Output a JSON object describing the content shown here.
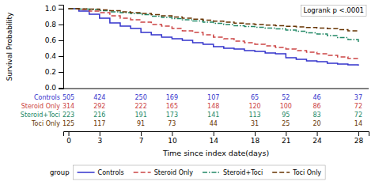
{
  "chart_data": {
    "type": "step",
    "title": "Logrank p <.0001",
    "ylabel": "Survival Probability",
    "xlabel": "Time since index date(days)",
    "legend_title": "group",
    "legend": "bottom",
    "grid": false,
    "x": [
      0,
      1,
      2,
      3,
      4,
      5,
      6,
      7,
      8,
      9,
      10,
      11,
      12,
      13,
      14,
      15,
      16,
      17,
      18,
      19,
      20,
      21,
      22,
      23,
      24,
      25,
      26,
      27,
      28
    ],
    "xlim": [
      -0.5,
      29
    ],
    "xticks": [
      0,
      3,
      7,
      10,
      14,
      18,
      21,
      24,
      28
    ],
    "ylim": [
      -0.01,
      1.05
    ],
    "yticks": [
      {
        "value": 0,
        "label": "0.0"
      },
      0.2,
      0.4,
      0.6,
      0.8,
      {
        "value": 1,
        "label": "1.0"
      }
    ],
    "series": [
      {
        "name": "Controls",
        "color": "#3333cc",
        "line_style": "solid",
        "values": [
          1.0,
          0.97,
          0.93,
          0.88,
          0.82,
          0.78,
          0.75,
          0.7,
          0.67,
          0.64,
          0.62,
          0.6,
          0.57,
          0.55,
          0.52,
          0.5,
          0.49,
          0.47,
          0.46,
          0.44,
          0.43,
          0.38,
          0.36,
          0.34,
          0.33,
          0.31,
          0.3,
          0.29,
          0.28
        ],
        "at_risk": [
          505,
          424,
          250,
          169,
          107,
          65,
          52,
          46,
          37
        ]
      },
      {
        "name": "Steroid Only",
        "color": "#cc4444",
        "line_style": "dashed",
        "values": [
          1.0,
          0.99,
          0.97,
          0.95,
          0.91,
          0.88,
          0.86,
          0.83,
          0.8,
          0.78,
          0.75,
          0.72,
          0.7,
          0.67,
          0.64,
          0.62,
          0.59,
          0.57,
          0.55,
          0.53,
          0.51,
          0.49,
          0.47,
          0.45,
          0.43,
          0.41,
          0.39,
          0.37,
          0.36
        ],
        "at_risk": [
          314,
          292,
          222,
          165,
          148,
          120,
          100,
          86,
          72
        ]
      },
      {
        "name": "Steroid+Toci",
        "color": "#228866",
        "line_style": "dashdot",
        "values": [
          1.0,
          0.995,
          0.99,
          0.975,
          0.96,
          0.95,
          0.94,
          0.925,
          0.905,
          0.89,
          0.875,
          0.86,
          0.845,
          0.83,
          0.815,
          0.8,
          0.785,
          0.775,
          0.765,
          0.755,
          0.745,
          0.73,
          0.715,
          0.695,
          0.68,
          0.66,
          0.635,
          0.61,
          0.58
        ],
        "at_risk": [
          223,
          216,
          191,
          173,
          141,
          113,
          95,
          83,
          72
        ]
      },
      {
        "name": "Toci Only",
        "color": "#663300",
        "line_style": "dashed",
        "values": [
          1.0,
          0.998,
          0.995,
          0.985,
          0.975,
          0.96,
          0.95,
          0.94,
          0.925,
          0.91,
          0.895,
          0.88,
          0.868,
          0.855,
          0.842,
          0.83,
          0.818,
          0.808,
          0.8,
          0.793,
          0.786,
          0.778,
          0.77,
          0.762,
          0.755,
          0.748,
          0.735,
          0.72,
          0.705
        ],
        "at_risk": [
          125,
          117,
          91,
          73,
          44,
          31,
          25,
          20,
          14
        ]
      }
    ]
  }
}
